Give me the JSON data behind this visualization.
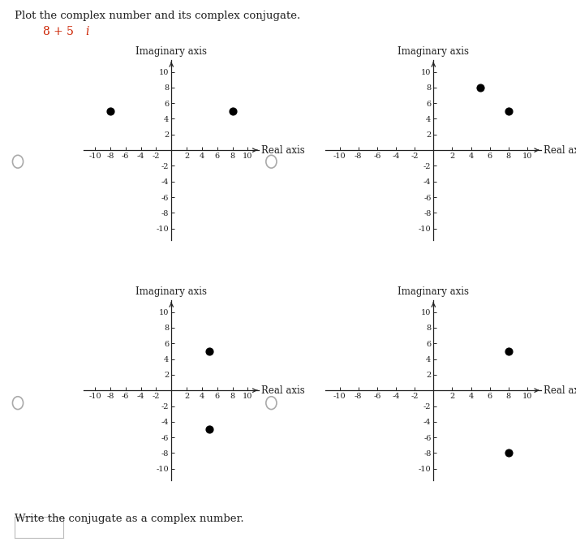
{
  "title_text": "Plot the complex number and its complex conjugate.",
  "complex_number_plain": "8 + 5",
  "complex_number_i": "i",
  "plots": [
    {
      "points": [
        [
          -8,
          5
        ],
        [
          8,
          5
        ]
      ]
    },
    {
      "points": [
        [
          5,
          8
        ],
        [
          8,
          5
        ]
      ]
    },
    {
      "points": [
        [
          5,
          5
        ],
        [
          5,
          -5
        ]
      ]
    },
    {
      "points": [
        [
          8,
          5
        ],
        [
          8,
          -8
        ]
      ]
    }
  ],
  "footer_text": "Write the conjugate as a complex number.",
  "axis_label_x": "Real axis",
  "axis_label_y": "Imaginary axis",
  "axis_lim": [
    -11.5,
    11.5
  ],
  "tick_positions": [
    -10,
    -8,
    -6,
    -4,
    -2,
    2,
    4,
    6,
    8,
    10
  ],
  "point_color": "#000000",
  "point_size": 40,
  "radio_edge": "#aaaaaa",
  "bg_color": "#ffffff",
  "text_color": "#222222",
  "red_color": "#cc2200",
  "spine_color": "#222222",
  "tick_labelsize": 7,
  "axis_labelsize": 8.5,
  "title_fontsize": 9.5,
  "complex_fontsize": 10
}
